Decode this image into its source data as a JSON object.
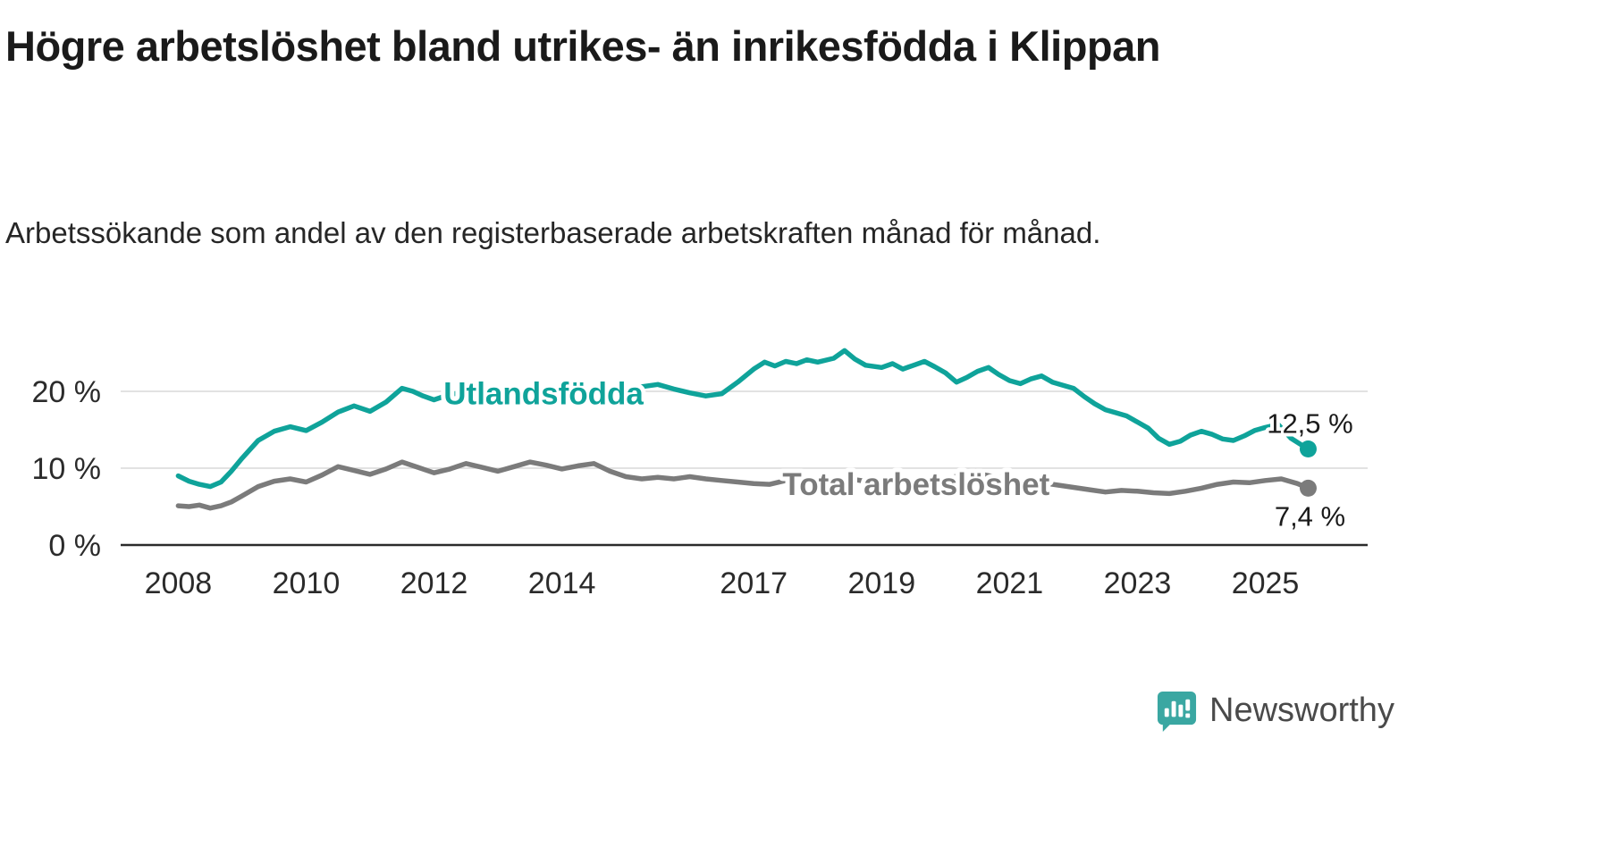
{
  "title": "Högre arbetslöshet bland utrikes- än inrikesfödda i Klippan",
  "subtitle": "Arbetssökande som andel av den registerbaserade arbetskraften månad för månad.",
  "footer": {
    "brand": "Newsworthy"
  },
  "colors": {
    "foreign_born_line": "#0fa39a",
    "total_line": "#7b7b7b",
    "logo_teal": "#3aa7a2",
    "axis": "#2b2b2b",
    "grid": "#d9d9d9"
  },
  "chart_data": {
    "type": "line",
    "title": "Högre arbetslöshet bland utrikes- än inrikesfödda i Klippan",
    "subtitle": "Arbetssökande som andel av den registerbaserade arbetskraften månad för månad.",
    "xlabel": "",
    "ylabel": "",
    "grid": "horizontal",
    "legend_position": "inline-labels",
    "xlim": [
      2007.1,
      2026.6
    ],
    "ylim": [
      0,
      28
    ],
    "xticks": [
      2008,
      2010,
      2012,
      2014,
      2017,
      2019,
      2021,
      2023,
      2025
    ],
    "yticks": [
      {
        "value": 0,
        "label": "0 %"
      },
      {
        "value": 10,
        "label": "10 %"
      },
      {
        "value": 20,
        "label": "20 %"
      }
    ],
    "series": [
      {
        "name": "Utlandsfödda",
        "color": "#0fa39a",
        "end_label": "12,5 %",
        "end_value": 12.5,
        "end_label_position": "above",
        "points": [
          [
            2008.0,
            9.0
          ],
          [
            2008.17,
            8.3
          ],
          [
            2008.33,
            7.9
          ],
          [
            2008.5,
            7.6
          ],
          [
            2008.67,
            8.2
          ],
          [
            2008.83,
            9.6
          ],
          [
            2009.0,
            11.3
          ],
          [
            2009.25,
            13.6
          ],
          [
            2009.5,
            14.8
          ],
          [
            2009.75,
            15.4
          ],
          [
            2010.0,
            14.9
          ],
          [
            2010.25,
            16.0
          ],
          [
            2010.5,
            17.3
          ],
          [
            2010.75,
            18.1
          ],
          [
            2011.0,
            17.4
          ],
          [
            2011.25,
            18.6
          ],
          [
            2011.5,
            20.4
          ],
          [
            2011.67,
            20.0
          ],
          [
            2011.83,
            19.4
          ],
          [
            2012.0,
            18.9
          ],
          [
            2012.25,
            19.6
          ],
          [
            2012.5,
            19.9
          ],
          [
            2012.75,
            20.1
          ],
          [
            2013.0,
            19.7
          ],
          [
            2013.25,
            20.2
          ],
          [
            2013.5,
            20.4
          ],
          [
            2013.75,
            20.1
          ],
          [
            2014.0,
            19.9
          ],
          [
            2014.25,
            20.4
          ],
          [
            2014.5,
            20.2
          ],
          [
            2014.75,
            19.9
          ],
          [
            2015.0,
            20.1
          ],
          [
            2015.25,
            20.6
          ],
          [
            2015.5,
            20.9
          ],
          [
            2015.75,
            20.3
          ],
          [
            2016.0,
            19.8
          ],
          [
            2016.25,
            19.4
          ],
          [
            2016.5,
            19.7
          ],
          [
            2016.75,
            21.2
          ],
          [
            2017.0,
            22.9
          ],
          [
            2017.17,
            23.8
          ],
          [
            2017.33,
            23.3
          ],
          [
            2017.5,
            23.9
          ],
          [
            2017.67,
            23.6
          ],
          [
            2017.83,
            24.1
          ],
          [
            2018.0,
            23.8
          ],
          [
            2018.25,
            24.3
          ],
          [
            2018.42,
            25.3
          ],
          [
            2018.58,
            24.2
          ],
          [
            2018.75,
            23.4
          ],
          [
            2019.0,
            23.1
          ],
          [
            2019.17,
            23.6
          ],
          [
            2019.33,
            22.9
          ],
          [
            2019.5,
            23.4
          ],
          [
            2019.67,
            23.9
          ],
          [
            2019.83,
            23.2
          ],
          [
            2020.0,
            22.4
          ],
          [
            2020.17,
            21.2
          ],
          [
            2020.33,
            21.8
          ],
          [
            2020.5,
            22.6
          ],
          [
            2020.67,
            23.1
          ],
          [
            2020.83,
            22.2
          ],
          [
            2021.0,
            21.4
          ],
          [
            2021.17,
            21.0
          ],
          [
            2021.33,
            21.6
          ],
          [
            2021.5,
            22.0
          ],
          [
            2021.67,
            21.2
          ],
          [
            2021.83,
            20.8
          ],
          [
            2022.0,
            20.4
          ],
          [
            2022.17,
            19.3
          ],
          [
            2022.33,
            18.4
          ],
          [
            2022.5,
            17.6
          ],
          [
            2022.67,
            17.2
          ],
          [
            2022.83,
            16.8
          ],
          [
            2023.0,
            16.0
          ],
          [
            2023.17,
            15.2
          ],
          [
            2023.33,
            13.9
          ],
          [
            2023.5,
            13.1
          ],
          [
            2023.67,
            13.5
          ],
          [
            2023.83,
            14.3
          ],
          [
            2024.0,
            14.8
          ],
          [
            2024.17,
            14.4
          ],
          [
            2024.33,
            13.8
          ],
          [
            2024.5,
            13.6
          ],
          [
            2024.67,
            14.2
          ],
          [
            2024.83,
            14.9
          ],
          [
            2025.0,
            15.3
          ],
          [
            2025.2,
            15.7
          ],
          [
            2025.4,
            13.9
          ],
          [
            2025.55,
            13.1
          ],
          [
            2025.67,
            12.5
          ]
        ]
      },
      {
        "name": "Total arbetslöshet",
        "color": "#7b7b7b",
        "end_label": "7,4 %",
        "end_value": 7.4,
        "end_label_position": "below",
        "points": [
          [
            2008.0,
            5.1
          ],
          [
            2008.17,
            5.0
          ],
          [
            2008.33,
            5.2
          ],
          [
            2008.5,
            4.8
          ],
          [
            2008.67,
            5.1
          ],
          [
            2008.83,
            5.6
          ],
          [
            2009.0,
            6.4
          ],
          [
            2009.25,
            7.6
          ],
          [
            2009.5,
            8.3
          ],
          [
            2009.75,
            8.6
          ],
          [
            2010.0,
            8.2
          ],
          [
            2010.25,
            9.1
          ],
          [
            2010.5,
            10.2
          ],
          [
            2010.75,
            9.7
          ],
          [
            2011.0,
            9.2
          ],
          [
            2011.25,
            9.9
          ],
          [
            2011.5,
            10.8
          ],
          [
            2011.75,
            10.1
          ],
          [
            2012.0,
            9.4
          ],
          [
            2012.25,
            9.9
          ],
          [
            2012.5,
            10.6
          ],
          [
            2012.75,
            10.1
          ],
          [
            2013.0,
            9.6
          ],
          [
            2013.25,
            10.2
          ],
          [
            2013.5,
            10.8
          ],
          [
            2013.75,
            10.4
          ],
          [
            2014.0,
            9.9
          ],
          [
            2014.25,
            10.3
          ],
          [
            2014.5,
            10.6
          ],
          [
            2014.75,
            9.6
          ],
          [
            2015.0,
            8.9
          ],
          [
            2015.25,
            8.6
          ],
          [
            2015.5,
            8.8
          ],
          [
            2015.75,
            8.6
          ],
          [
            2016.0,
            8.9
          ],
          [
            2016.25,
            8.6
          ],
          [
            2016.5,
            8.4
          ],
          [
            2016.75,
            8.2
          ],
          [
            2017.0,
            8.0
          ],
          [
            2017.25,
            7.9
          ],
          [
            2017.5,
            8.4
          ],
          [
            2017.75,
            8.8
          ],
          [
            2018.0,
            8.6
          ],
          [
            2018.25,
            8.4
          ],
          [
            2018.5,
            8.6
          ],
          [
            2018.75,
            8.3
          ],
          [
            2019.0,
            8.1
          ],
          [
            2019.25,
            8.1
          ],
          [
            2019.5,
            8.4
          ],
          [
            2019.75,
            8.6
          ],
          [
            2020.0,
            8.6
          ],
          [
            2020.25,
            9.1
          ],
          [
            2020.5,
            9.3
          ],
          [
            2020.75,
            8.9
          ],
          [
            2021.0,
            8.6
          ],
          [
            2021.25,
            8.3
          ],
          [
            2021.5,
            8.1
          ],
          [
            2021.75,
            7.8
          ],
          [
            2022.0,
            7.5
          ],
          [
            2022.25,
            7.2
          ],
          [
            2022.5,
            6.9
          ],
          [
            2022.75,
            7.1
          ],
          [
            2023.0,
            7.0
          ],
          [
            2023.25,
            6.8
          ],
          [
            2023.5,
            6.7
          ],
          [
            2023.75,
            7.0
          ],
          [
            2024.0,
            7.4
          ],
          [
            2024.25,
            7.9
          ],
          [
            2024.5,
            8.2
          ],
          [
            2024.75,
            8.1
          ],
          [
            2025.0,
            8.4
          ],
          [
            2025.25,
            8.6
          ],
          [
            2025.5,
            8.0
          ],
          [
            2025.67,
            7.4
          ]
        ]
      }
    ],
    "annotations": [
      {
        "text": "Utlandsfödda",
        "x": 2012.15,
        "y": 18.3,
        "color": "#0fa39a"
      },
      {
        "text": "Total arbetslöshet",
        "x": 2017.45,
        "y": 6.5,
        "color": "#7b7b7b"
      }
    ]
  }
}
